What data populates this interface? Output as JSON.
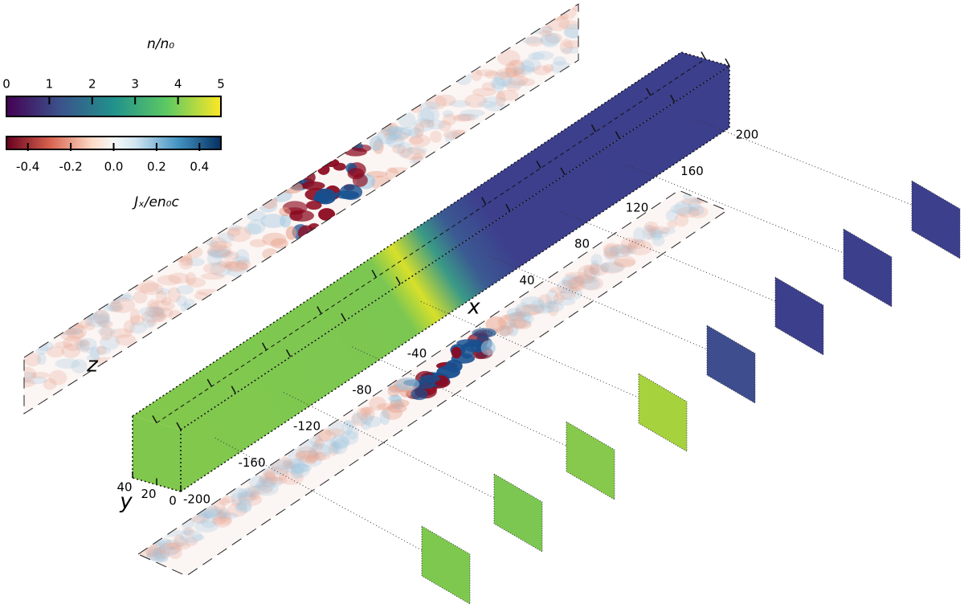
{
  "chart_data": {
    "type": "volume",
    "density_colorbar": {
      "label": "n/n₀",
      "clim": [
        0,
        5
      ],
      "ticks": [
        0,
        1,
        2,
        3,
        4,
        5
      ]
    },
    "current_colorbar": {
      "label": "Jₓ/en₀c",
      "clim": [
        -0.5,
        0.5
      ],
      "ticks": [
        -0.4,
        -0.2,
        {
          "value": 0,
          "label": "0.0"
        },
        0.2,
        0.4
      ]
    },
    "xlabel": "x",
    "ylabel": "y",
    "zlabel": "z",
    "xlim": [
      -200,
      200
    ],
    "xticks": [
      -200,
      -160,
      -120,
      -80,
      -40,
      40,
      80,
      120,
      160,
      200
    ],
    "ylim": [
      0,
      40
    ],
    "yticks": [
      0,
      20,
      40
    ]
  }
}
